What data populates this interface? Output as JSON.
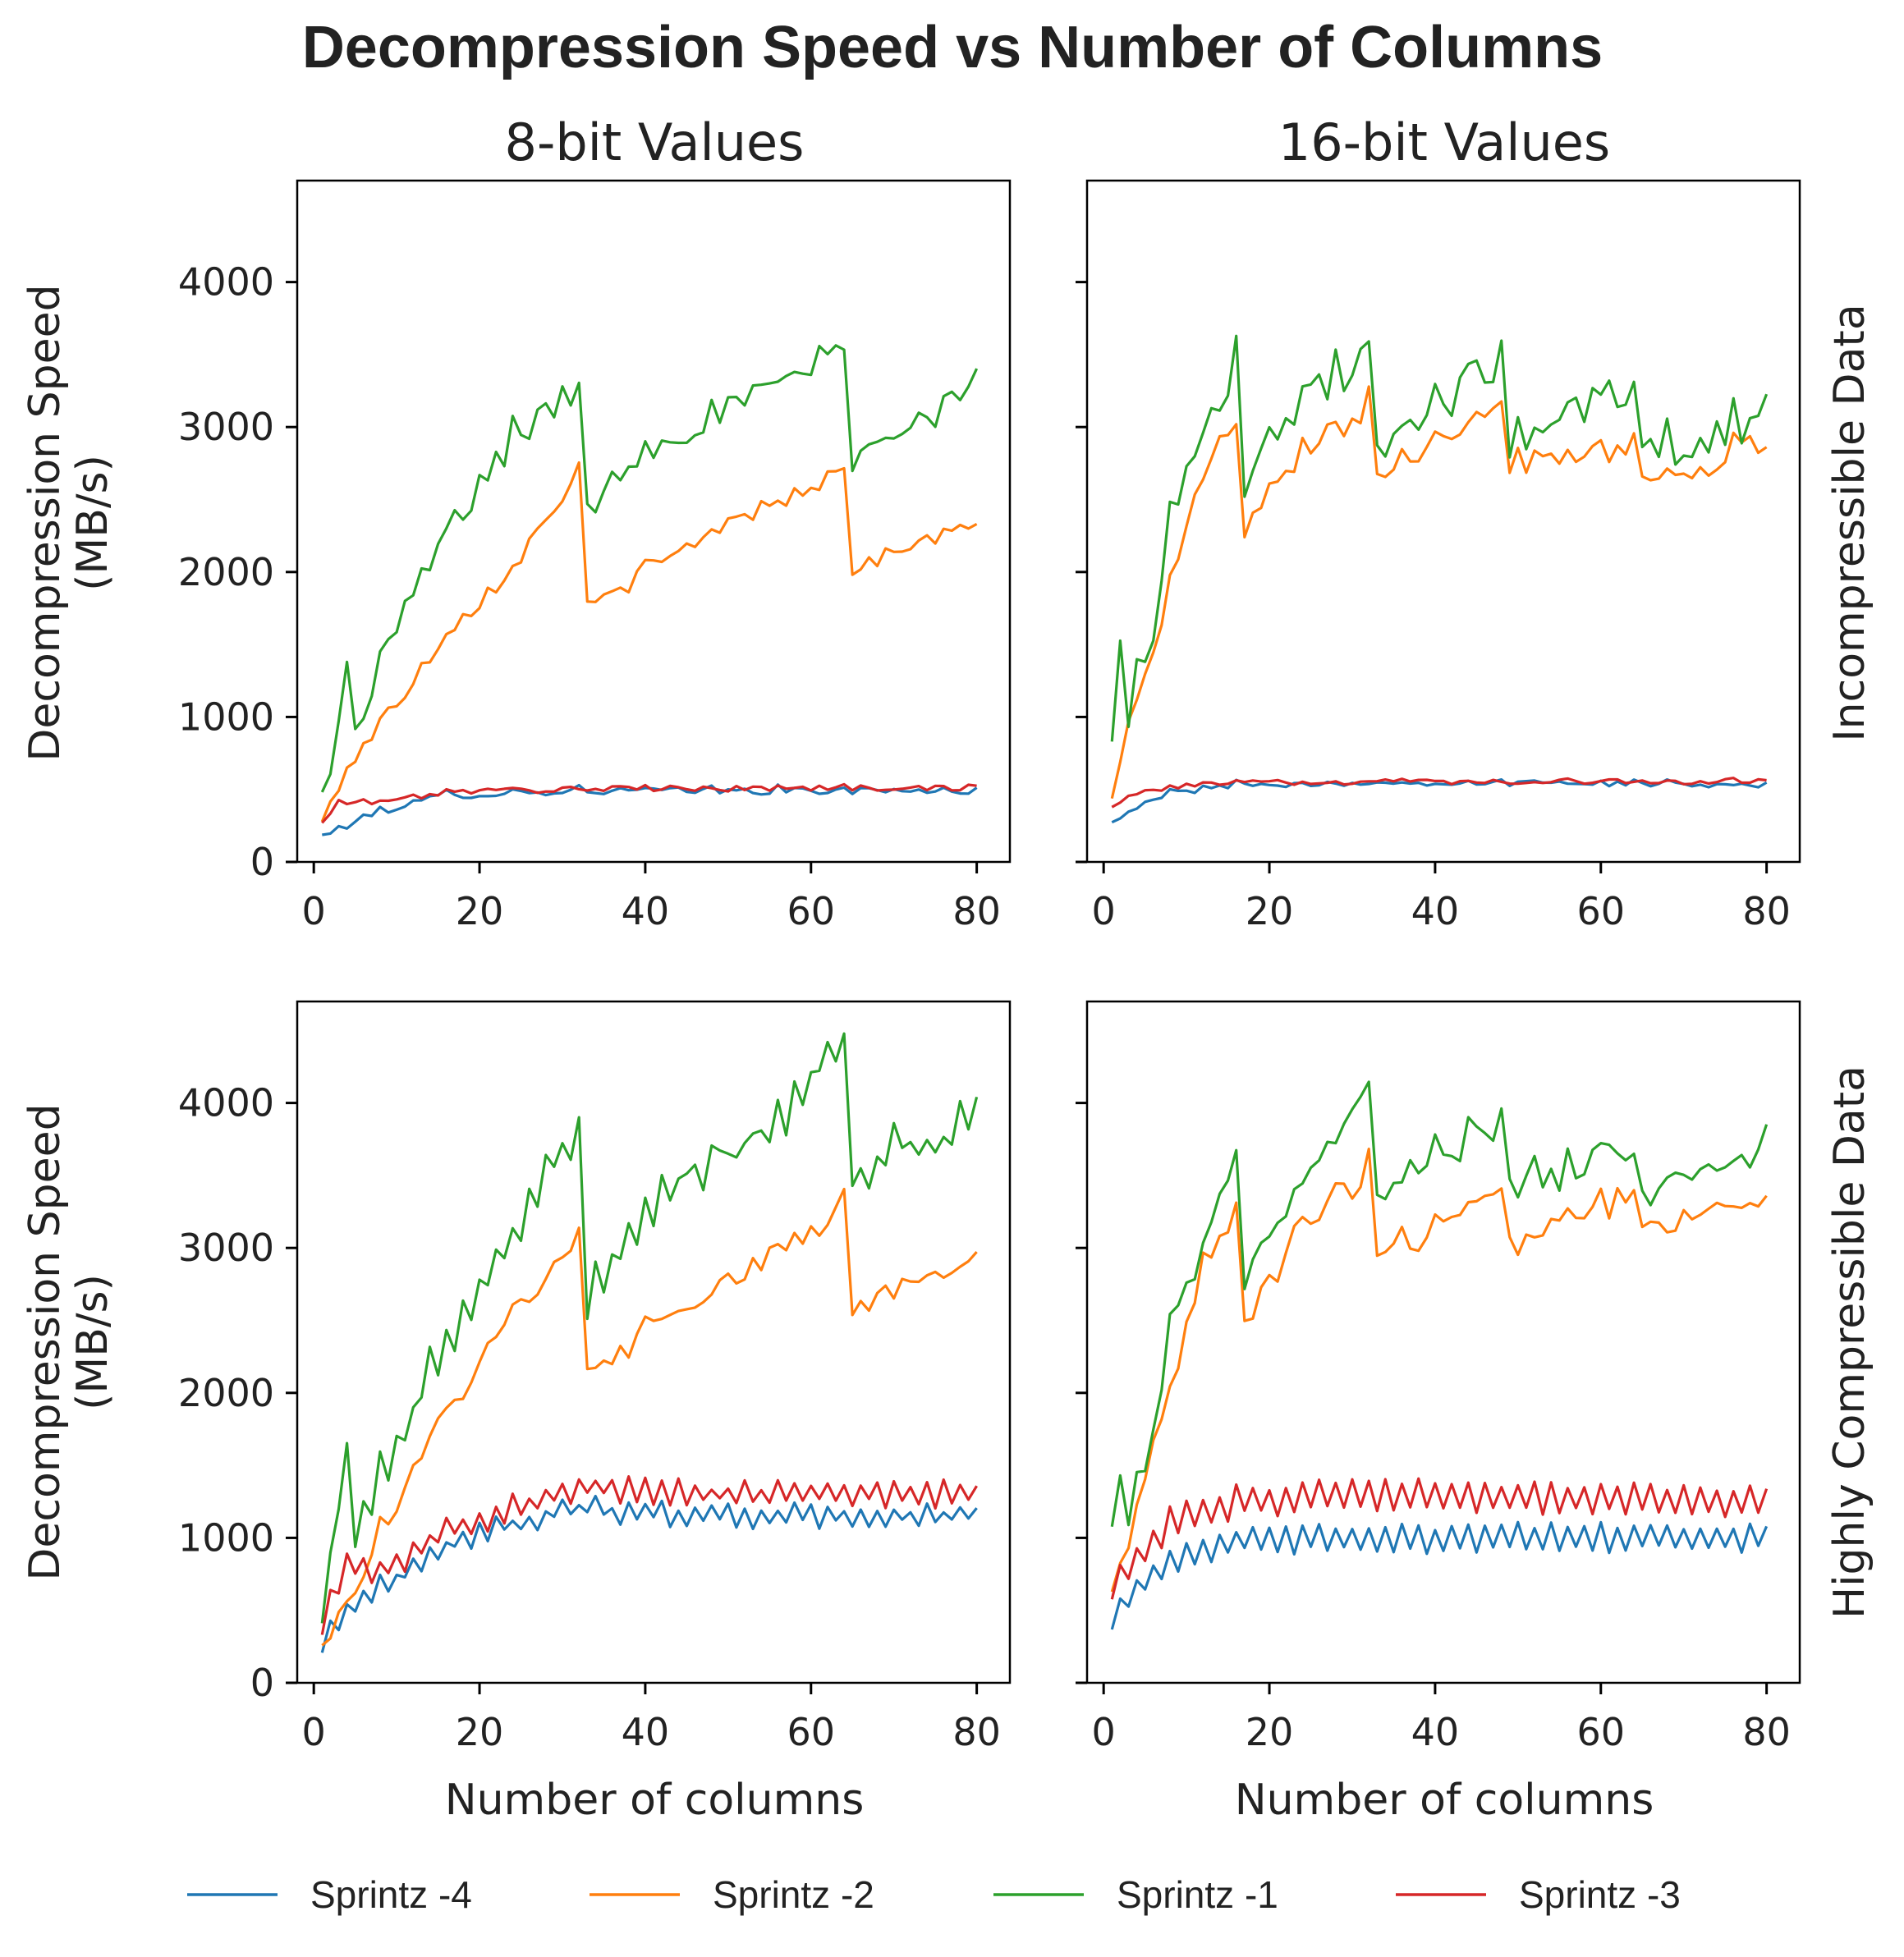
{
  "figure": {
    "title": "Decompression Speed vs Number of Columns",
    "col_titles": [
      "8-bit Values",
      "16-bit Values"
    ],
    "row_labels": [
      "Incompressible Data",
      "Highly Compressible Data"
    ],
    "ylabel_line1": "Decompression Speed",
    "ylabel_line2": "(MB/s)",
    "xlabel": "Number of columns"
  },
  "legend": [
    {
      "name": "Sprintz -4",
      "color": "#1f77b4"
    },
    {
      "name": "Sprintz -2",
      "color": "#ff7f0e"
    },
    {
      "name": "Sprintz -1",
      "color": "#2ca02c"
    },
    {
      "name": "Sprintz -3",
      "color": "#d62728"
    }
  ],
  "chart_data": {
    "type": "line",
    "x_range": [
      1,
      80
    ],
    "xlim": [
      -2,
      84
    ],
    "ylim": [
      0,
      4700
    ],
    "xticks": [
      0,
      20,
      40,
      60,
      80
    ],
    "yticks": [
      0,
      1000,
      2000,
      3000,
      4000
    ],
    "grid": false,
    "legend_placement": "bottom",
    "panels": [
      {
        "id": "p8_inc",
        "col": "8-bit Values",
        "row": "Incompressible Data",
        "series": [
          {
            "name": "Sprintz -4",
            "key": [
              [
                1,
                190
              ],
              [
                8,
                360
              ],
              [
                16,
                470
              ],
              [
                32,
                500
              ],
              [
                48,
                500
              ],
              [
                80,
                500
              ]
            ],
            "noise": 25,
            "zig": 20,
            "pmode": 8
          },
          {
            "name": "Sprintz -2",
            "key": [
              [
                1,
                280
              ],
              [
                4,
                680
              ],
              [
                8,
                960
              ],
              [
                16,
                1600
              ],
              [
                24,
                2050
              ],
              [
                32,
                2720
              ],
              [
                33,
                1760
              ],
              [
                48,
                2300
              ],
              [
                64,
                2720
              ],
              [
                65,
                2050
              ],
              [
                80,
                2350
              ]
            ],
            "noise": 60,
            "zig": 40,
            "pmode": 8
          },
          {
            "name": "Sprintz -1",
            "key": [
              [
                1,
                480
              ],
              [
                3,
                1000
              ],
              [
                4,
                1350
              ],
              [
                5,
                880
              ],
              [
                8,
                1420
              ],
              [
                16,
                2300
              ],
              [
                24,
                2950
              ],
              [
                32,
                3300
              ],
              [
                33,
                2480
              ],
              [
                40,
                2900
              ],
              [
                48,
                3100
              ],
              [
                56,
                3300
              ],
              [
                64,
                3600
              ],
              [
                65,
                2820
              ],
              [
                80,
                3300
              ]
            ],
            "noise": 110,
            "zig": 70,
            "pmode": 8
          },
          {
            "name": "Sprintz -3",
            "key": [
              [
                1,
                270
              ],
              [
                3,
                420
              ],
              [
                8,
                420
              ],
              [
                16,
                490
              ],
              [
                32,
                510
              ],
              [
                80,
                520
              ]
            ],
            "noise": 20,
            "zig": 15,
            "pmode": 8
          }
        ]
      },
      {
        "id": "p16_inc",
        "col": "16-bit Values",
        "row": "Incompressible Data",
        "series": [
          {
            "name": "Sprintz -4",
            "key": [
              [
                1,
                300
              ],
              [
                8,
                480
              ],
              [
                16,
                540
              ],
              [
                32,
                550
              ],
              [
                48,
                550
              ],
              [
                80,
                540
              ]
            ],
            "noise": 20,
            "zig": 15,
            "pmode": 4
          },
          {
            "name": "Sprintz -2",
            "key": [
              [
                1,
                560
              ],
              [
                4,
                1100
              ],
              [
                8,
                1900
              ],
              [
                12,
                2700
              ],
              [
                16,
                3050
              ],
              [
                17,
                2300
              ],
              [
                24,
                2800
              ],
              [
                32,
                3200
              ],
              [
                33,
                2750
              ],
              [
                40,
                2950
              ],
              [
                48,
                3200
              ],
              [
                49,
                2800
              ],
              [
                64,
                2900
              ],
              [
                65,
                2650
              ],
              [
                80,
                2900
              ]
            ],
            "noise": 100,
            "zig": 60,
            "pmode": 4
          },
          {
            "name": "Sprintz -1",
            "key": [
              [
                1,
                1000
              ],
              [
                2,
                1500
              ],
              [
                3,
                1050
              ],
              [
                6,
                1700
              ],
              [
                8,
                2400
              ],
              [
                12,
                2950
              ],
              [
                15,
                3400
              ],
              [
                16,
                3600
              ],
              [
                17,
                2700
              ],
              [
                24,
                3200
              ],
              [
                32,
                3550
              ],
              [
                33,
                2800
              ],
              [
                40,
                3150
              ],
              [
                48,
                3500
              ],
              [
                49,
                2950
              ],
              [
                64,
                3300
              ],
              [
                65,
                2850
              ],
              [
                80,
                3100
              ]
            ],
            "noise": 140,
            "zig": 90,
            "pmode": 4
          },
          {
            "name": "Sprintz -3",
            "key": [
              [
                1,
                400
              ],
              [
                3,
                460
              ],
              [
                8,
                520
              ],
              [
                16,
                550
              ],
              [
                32,
                560
              ],
              [
                80,
                560
              ]
            ],
            "noise": 18,
            "zig": 12,
            "pmode": 4
          }
        ]
      },
      {
        "id": "p8_hc",
        "col": "8-bit Values",
        "row": "Highly Compressible Data",
        "series": [
          {
            "name": "Sprintz -4",
            "key": [
              [
                1,
                270
              ],
              [
                4,
                520
              ],
              [
                8,
                650
              ],
              [
                16,
                950
              ],
              [
                24,
                1100
              ],
              [
                32,
                1200
              ],
              [
                48,
                1150
              ],
              [
                80,
                1150
              ]
            ],
            "noise": 40,
            "zig": 110,
            "pmode": 2
          },
          {
            "name": "Sprintz -2",
            "key": [
              [
                1,
                300
              ],
              [
                4,
                600
              ],
              [
                8,
                1050
              ],
              [
                16,
                1900
              ],
              [
                24,
                2550
              ],
              [
                32,
                3050
              ],
              [
                33,
                2180
              ],
              [
                48,
                2700
              ],
              [
                64,
                3300
              ],
              [
                65,
                2600
              ],
              [
                80,
                3000
              ]
            ],
            "noise": 80,
            "zig": 60,
            "pmode": 8
          },
          {
            "name": "Sprintz -1",
            "key": [
              [
                1,
                500
              ],
              [
                4,
                1500
              ],
              [
                5,
                950
              ],
              [
                8,
                1450
              ],
              [
                16,
                2350
              ],
              [
                24,
                3100
              ],
              [
                32,
                3800
              ],
              [
                33,
                2650
              ],
              [
                40,
                3300
              ],
              [
                48,
                3600
              ],
              [
                56,
                3900
              ],
              [
                64,
                4350
              ],
              [
                65,
                3550
              ],
              [
                80,
                3900
              ]
            ],
            "noise": 120,
            "zig": 150,
            "pmode": 2
          },
          {
            "name": "Sprintz -3",
            "key": [
              [
                1,
                400
              ],
              [
                4,
                850
              ],
              [
                8,
                750
              ],
              [
                16,
                1050
              ],
              [
                24,
                1200
              ],
              [
                32,
                1350
              ],
              [
                48,
                1300
              ],
              [
                80,
                1300
              ]
            ],
            "noise": 40,
            "zig": 130,
            "pmode": 2
          }
        ]
      },
      {
        "id": "p16_hc",
        "col": "16-bit Values",
        "row": "Highly Compressible Data",
        "series": [
          {
            "name": "Sprintz -4",
            "key": [
              [
                1,
                430
              ],
              [
                4,
                650
              ],
              [
                8,
                850
              ],
              [
                16,
                980
              ],
              [
                32,
                1000
              ],
              [
                80,
                1000
              ]
            ],
            "noise": 30,
            "zig": 160,
            "pmode": 2
          },
          {
            "name": "Sprintz -2",
            "key": [
              [
                1,
                600
              ],
              [
                4,
                1200
              ],
              [
                8,
                2100
              ],
              [
                12,
                2900
              ],
              [
                16,
                3300
              ],
              [
                17,
                2500
              ],
              [
                24,
                3200
              ],
              [
                32,
                3550
              ],
              [
                33,
                2900
              ],
              [
                40,
                3200
              ],
              [
                48,
                3450
              ],
              [
                49,
                3050
              ],
              [
                64,
                3400
              ],
              [
                65,
                3100
              ],
              [
                80,
                3400
              ]
            ],
            "noise": 100,
            "zig": 70,
            "pmode": 4
          },
          {
            "name": "Sprintz -1",
            "key": [
              [
                1,
                1050
              ],
              [
                2,
                1550
              ],
              [
                3,
                1100
              ],
              [
                6,
                1800
              ],
              [
                8,
                2400
              ],
              [
                12,
                3100
              ],
              [
                16,
                3600
              ],
              [
                17,
                2800
              ],
              [
                24,
                3500
              ],
              [
                32,
                4050
              ],
              [
                33,
                3400
              ],
              [
                40,
                3650
              ],
              [
                48,
                3900
              ],
              [
                49,
                3450
              ],
              [
                64,
                3700
              ],
              [
                65,
                3350
              ],
              [
                80,
                3750
              ]
            ],
            "noise": 110,
            "zig": 90,
            "pmode": 4
          },
          {
            "name": "Sprintz -3",
            "key": [
              [
                1,
                650
              ],
              [
                4,
                850
              ],
              [
                8,
                1100
              ],
              [
                16,
                1250
              ],
              [
                32,
                1300
              ],
              [
                80,
                1250
              ]
            ],
            "noise": 30,
            "zig": 190,
            "pmode": 2
          }
        ]
      }
    ]
  }
}
